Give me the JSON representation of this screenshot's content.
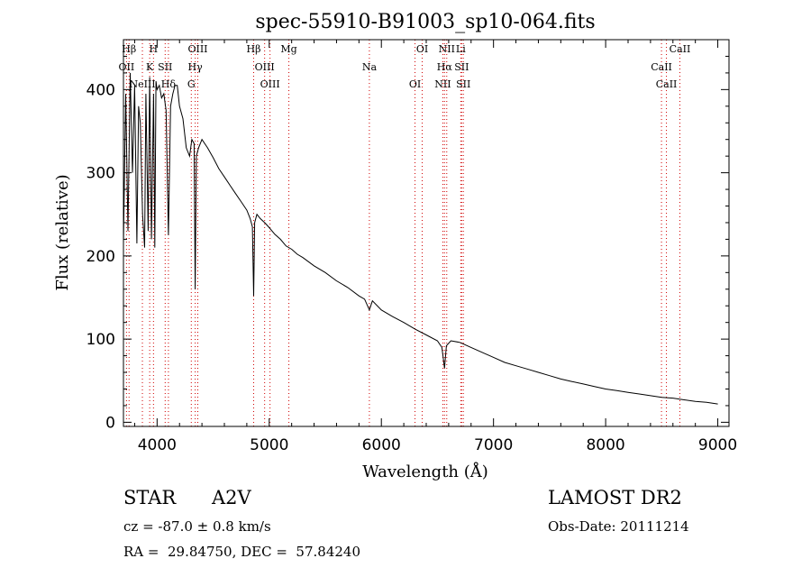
{
  "chart_data": {
    "type": "line",
    "title": "spec-55910-B91003_sp10-064.fits",
    "xlabel": "Wavelength (Å)",
    "ylabel": "Flux (relative)",
    "xlim": [
      3700,
      9100
    ],
    "ylim": [
      -5,
      460
    ],
    "xticks": [
      4000,
      5000,
      6000,
      7000,
      8000,
      9000
    ],
    "yticks": [
      0,
      100,
      200,
      300,
      400
    ],
    "grid": false,
    "series": [
      {
        "x": [
          3700,
          3720,
          3740,
          3760,
          3780,
          3800,
          3820,
          3835,
          3850,
          3870,
          3889,
          3900,
          3920,
          3934,
          3950,
          3968,
          3980,
          3990,
          4000,
          4020,
          4040,
          4060,
          4080,
          4101,
          4120,
          4140,
          4160,
          4180,
          4200,
          4230,
          4260,
          4290,
          4310,
          4330,
          4340,
          4350,
          4370,
          4400,
          4450,
          4500,
          4550,
          4600,
          4650,
          4700,
          4750,
          4800,
          4830,
          4850,
          4861,
          4870,
          4890,
          4920,
          4960,
          5000,
          5050,
          5100,
          5150,
          5200,
          5250,
          5300,
          5400,
          5500,
          5600,
          5700,
          5800,
          5850,
          5893,
          5920,
          6000,
          6100,
          6200,
          6300,
          6400,
          6500,
          6540,
          6563,
          6580,
          6620,
          6700,
          6800,
          6900,
          7000,
          7100,
          7200,
          7300,
          7400,
          7500,
          7600,
          7700,
          7800,
          7900,
          8000,
          8100,
          8200,
          8300,
          8400,
          8500,
          8600,
          8700,
          8800,
          8900,
          9000
        ],
        "y": [
          215,
          395,
          230,
          420,
          300,
          405,
          215,
          380,
          360,
          250,
          210,
          395,
          230,
          415,
          220,
          395,
          210,
          410,
          400,
          405,
          390,
          395,
          375,
          225,
          380,
          395,
          405,
          405,
          380,
          365,
          330,
          320,
          340,
          335,
          160,
          320,
          330,
          340,
          330,
          318,
          305,
          295,
          285,
          275,
          265,
          255,
          245,
          235,
          152,
          240,
          250,
          245,
          240,
          234,
          226,
          220,
          212,
          208,
          202,
          198,
          188,
          180,
          170,
          162,
          152,
          148,
          135,
          146,
          135,
          127,
          120,
          112,
          105,
          98,
          90,
          65,
          92,
          98,
          96,
          90,
          84,
          78,
          72,
          68,
          64,
          60,
          56,
          52,
          49,
          46,
          43,
          40,
          38,
          36,
          34,
          32,
          30,
          29,
          27,
          25,
          24,
          22
        ]
      }
    ],
    "lines": [
      {
        "label": "Hβ",
        "x": 3750
      },
      {
        "label": "K",
        "x": 3934
      },
      {
        "label": "Hδ",
        "x": 4101
      },
      {
        "label": "OIII",
        "x": 4363
      },
      {
        "label": "Hγ",
        "x": 4340
      },
      {
        "label": "G",
        "x": 4305
      },
      {
        "label": "Hβ",
        "x": 4861
      },
      {
        "label": "OIII",
        "x": 4959
      },
      {
        "label": "OIII",
        "x": 5007
      },
      {
        "label": "Mg",
        "x": 5175
      },
      {
        "label": "Na",
        "x": 5893
      },
      {
        "label": "OI",
        "x": 6300
      },
      {
        "label": "OI",
        "x": 6364
      },
      {
        "label": "Hα",
        "x": 6563
      },
      {
        "label": "NII",
        "x": 6548
      },
      {
        "label": "NII",
        "x": 6583
      },
      {
        "label": "SII",
        "x": 6716
      },
      {
        "label": "SII",
        "x": 6731
      },
      {
        "label": "Li",
        "x": 6708
      },
      {
        "label": "CaII",
        "x": 8498
      },
      {
        "label": "CaII",
        "x": 8542
      },
      {
        "label": "CaII",
        "x": 8662
      },
      {
        "label": "OII",
        "x": 3727
      },
      {
        "label": "NeIII",
        "x": 3869
      },
      {
        "label": "H",
        "x": 3968
      },
      {
        "label": "SII",
        "x": 4072
      }
    ]
  },
  "info": {
    "object_class": "STAR",
    "subclass": "A2V",
    "survey": "LAMOST DR2",
    "cz": "cz = -87.0 ± 0.8 km/s",
    "obs_date": "Obs-Date: 20111214",
    "radec": "RA =  29.84750, DEC =  57.84240"
  },
  "colors": {
    "axis": "#000000",
    "spectrum": "#000000",
    "line_marker": "#d00000"
  }
}
